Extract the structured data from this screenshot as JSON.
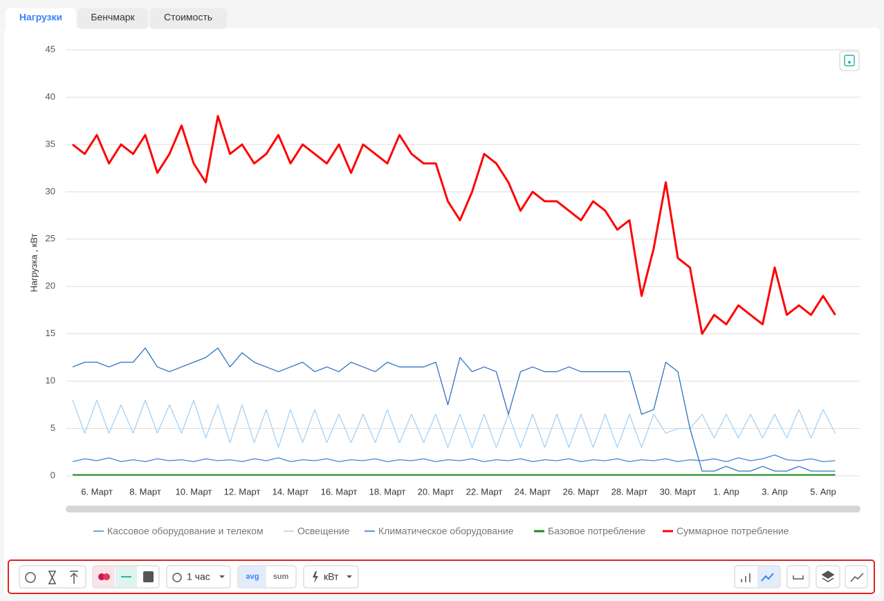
{
  "tabs": [
    "Нагрузки",
    "Бенчмарк",
    "Стоимость"
  ],
  "chart_data": {
    "type": "line",
    "y_label": "Нагрузка , кВт",
    "categories": [
      null,
      null,
      "6. Март",
      null,
      null,
      null,
      "8. Март",
      null,
      null,
      null,
      "10. Март",
      null,
      null,
      null,
      "12. Март",
      null,
      null,
      null,
      "14. Март",
      null,
      null,
      null,
      "16. Март",
      null,
      null,
      null,
      "18. Март",
      null,
      null,
      null,
      "20. Март",
      null,
      null,
      null,
      "22. Март",
      null,
      null,
      null,
      "24. Март",
      null,
      null,
      null,
      "26. Март",
      null,
      null,
      null,
      "28. Март",
      null,
      null,
      null,
      "30. Март",
      null,
      null,
      null,
      "1. Апр",
      null,
      null,
      null,
      "3. Апр",
      null,
      null,
      null,
      "5. Апр",
      null
    ],
    "ylim": [
      0,
      45
    ],
    "yticks": [
      0,
      5,
      10,
      15,
      20,
      25,
      30,
      35,
      40,
      45
    ],
    "grid": true,
    "series": [
      {
        "name": "Кассовое оборудование и телеком",
        "color": "#3d85d6",
        "values": [
          1.5,
          1.8,
          1.6,
          1.9,
          1.5,
          1.7,
          1.5,
          1.8,
          1.6,
          1.7,
          1.5,
          1.8,
          1.6,
          1.7,
          1.5,
          1.8,
          1.6,
          1.9,
          1.5,
          1.7,
          1.6,
          1.8,
          1.5,
          1.7,
          1.6,
          1.8,
          1.5,
          1.7,
          1.6,
          1.8,
          1.5,
          1.7,
          1.6,
          1.8,
          1.5,
          1.7,
          1.6,
          1.8,
          1.5,
          1.7,
          1.6,
          1.8,
          1.5,
          1.7,
          1.6,
          1.8,
          1.5,
          1.7,
          1.6,
          1.8,
          1.5,
          1.7,
          1.6,
          1.8,
          1.5,
          1.9,
          1.6,
          1.8,
          2.2,
          1.7,
          1.6,
          1.8,
          1.5,
          1.6
        ]
      },
      {
        "name": "Освещение",
        "color": "#a6d1f2",
        "values": [
          8,
          4.5,
          8,
          4.5,
          7.5,
          4.5,
          8,
          4.5,
          7.5,
          4.5,
          8,
          4,
          7.5,
          3.5,
          7.5,
          3.5,
          7,
          3,
          7,
          3.5,
          7,
          3.5,
          6.5,
          3.5,
          6.5,
          3.5,
          7,
          3.5,
          6.5,
          3.5,
          6.5,
          3,
          6.5,
          3,
          6.5,
          3,
          6.5,
          3,
          6.5,
          3,
          6.5,
          3,
          6.5,
          3,
          6.5,
          3,
          6.5,
          3,
          6.5,
          4.5,
          5,
          5,
          6.5,
          4,
          6.5,
          4,
          6.5,
          4,
          6.5,
          4,
          7,
          4,
          7,
          4.5
        ]
      },
      {
        "name": "Климатическое оборудование",
        "color": "#2b70c2",
        "values": [
          11.5,
          12,
          12,
          11.5,
          12,
          12,
          13.5,
          11.5,
          11,
          11.5,
          12,
          12.5,
          13.5,
          11.5,
          13,
          12,
          11.5,
          11,
          11.5,
          12,
          11,
          11.5,
          11,
          12,
          11.5,
          11,
          12,
          11.5,
          11.5,
          11.5,
          12,
          7.5,
          12.5,
          11,
          11.5,
          11,
          6.5,
          11,
          11.5,
          11,
          11,
          11.5,
          11,
          11,
          11,
          11,
          11,
          6.5,
          7,
          12,
          11,
          5,
          0.5,
          0.5,
          1,
          0.5,
          0.5,
          1,
          0.5,
          0.5,
          1,
          0.5,
          0.5,
          0.5
        ]
      },
      {
        "name": "Базовое потребление",
        "color": "#1a8a1a",
        "values": [
          0.1,
          0.1,
          0.1,
          0.1,
          0.1,
          0.1,
          0.1,
          0.1,
          0.1,
          0.1,
          0.1,
          0.1,
          0.1,
          0.1,
          0.1,
          0.1,
          0.1,
          0.1,
          0.1,
          0.1,
          0.1,
          0.1,
          0.1,
          0.1,
          0.1,
          0.1,
          0.1,
          0.1,
          0.1,
          0.1,
          0.1,
          0.1,
          0.1,
          0.1,
          0.1,
          0.1,
          0.1,
          0.1,
          0.1,
          0.1,
          0.1,
          0.1,
          0.1,
          0.1,
          0.1,
          0.1,
          0.1,
          0.1,
          0.1,
          0.1,
          0.1,
          0.1,
          0.1,
          0.1,
          0.1,
          0.1,
          0.1,
          0.1,
          0.1,
          0.1,
          0.1,
          0.1,
          0.1,
          0.1
        ]
      },
      {
        "name": "Суммарное потребление",
        "color": "#ff0000",
        "values": [
          35,
          34,
          36,
          33,
          35,
          34,
          36,
          32,
          34,
          37,
          33,
          31,
          38,
          34,
          35,
          33,
          34,
          36,
          33,
          35,
          34,
          33,
          35,
          32,
          35,
          34,
          33,
          36,
          34,
          33,
          33,
          29,
          27,
          30,
          34,
          33,
          31,
          28,
          30,
          29,
          29,
          28,
          27,
          29,
          28,
          26,
          27,
          19,
          24,
          31,
          23,
          22,
          15,
          17,
          16,
          18,
          17,
          16,
          22,
          17,
          18,
          17,
          19,
          17
        ]
      }
    ]
  },
  "toolbar": {
    "interval": "1 час",
    "aggregation": [
      "avg",
      "sum"
    ],
    "unit": "кВт"
  }
}
